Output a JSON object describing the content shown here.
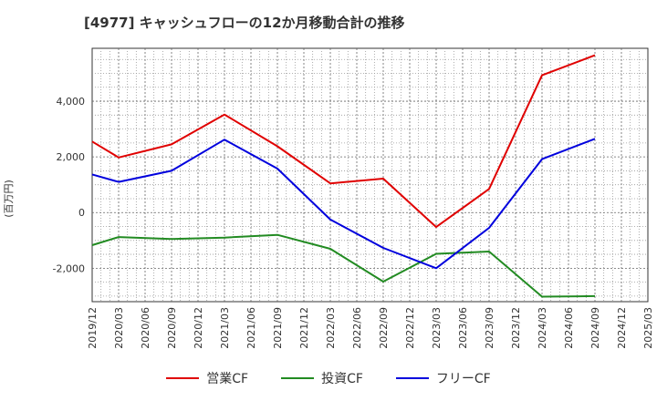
{
  "title": "[4977]  キャッシュフローの12か月移動合計の推移",
  "chart_data": {
    "type": "line",
    "ylabel": "(百万円)",
    "ylim": [
      -3200,
      5900
    ],
    "yticks": [
      -2000,
      0,
      2000,
      4000
    ],
    "ytick_labels": [
      "-2,000",
      "0",
      "2,000",
      "4,000"
    ],
    "categories": [
      "2019/12",
      "2020/03",
      "2020/06",
      "2020/09",
      "2020/12",
      "2021/03",
      "2021/06",
      "2021/09",
      "2021/12",
      "2022/03",
      "2022/06",
      "2022/09",
      "2022/12",
      "2023/03",
      "2023/06",
      "2023/09",
      "2023/12",
      "2024/03",
      "2024/06",
      "2024/09",
      "2024/12",
      "2025/03"
    ],
    "series": [
      {
        "name": "営業CF",
        "color": "#e00000",
        "values": [
          2550,
          1980,
          null,
          2450,
          null,
          3520,
          null,
          2380,
          null,
          1050,
          null,
          1220,
          null,
          -520,
          null,
          850,
          null,
          4930,
          null,
          5650,
          null,
          null
        ]
      },
      {
        "name": "投資CF",
        "color": "#228b22",
        "values": [
          -1170,
          -880,
          null,
          -950,
          null,
          -900,
          null,
          -800,
          null,
          -1300,
          null,
          -2480,
          null,
          -1480,
          null,
          -1400,
          null,
          -3020,
          null,
          -3000,
          null,
          null
        ]
      },
      {
        "name": "フリーCF",
        "color": "#0000dd",
        "values": [
          1370,
          1100,
          null,
          1500,
          null,
          2620,
          null,
          1580,
          null,
          -250,
          null,
          -1270,
          null,
          -2000,
          null,
          -550,
          null,
          1920,
          null,
          2650,
          null,
          null
        ]
      }
    ],
    "grid": true,
    "legend_position": "bottom"
  }
}
